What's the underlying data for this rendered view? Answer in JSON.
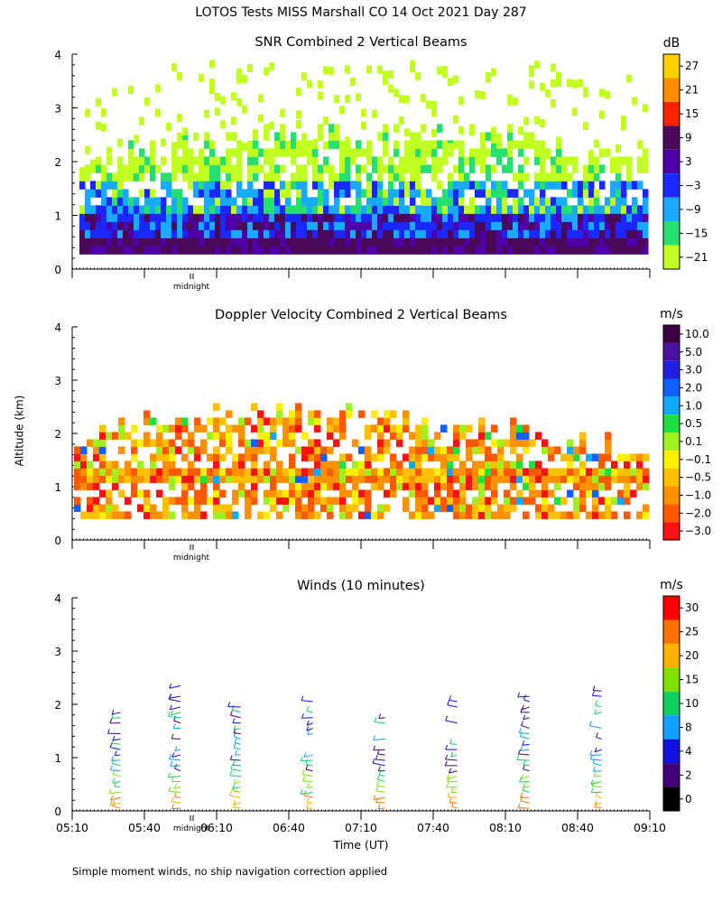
{
  "figure": {
    "title": "LOTOS Tests MISS Marshall CO  14 Oct 2021 Day 287",
    "y_axis_title": "Altitude (km)",
    "x_axis_title": "Time (UT)",
    "footnote": "Simple moment winds, no ship navigation correction applied",
    "midnight_label": "midnight"
  },
  "chart_data": [
    {
      "type": "heatmap",
      "title": "SNR Combined 2 Vertical Beams",
      "ylim": [
        0,
        4
      ],
      "yticks": [
        "0",
        "1",
        "2",
        "3",
        "4"
      ],
      "xlim": [
        "05:10",
        "09:10"
      ],
      "colorbar": {
        "unit": "dB",
        "labels": [
          "27",
          "21",
          "15",
          "9",
          "3",
          "−3",
          "−9",
          "−15",
          "−21"
        ],
        "colors": [
          "#ffd000",
          "#ff8c00",
          "#ff2000",
          "#4a0a5a",
          "#5000a8",
          "#1a28ff",
          "#18aaff",
          "#25e070",
          "#c0ff20"
        ]
      },
      "layers": [
        {
          "from_km": 0.25,
          "to_km": 0.45,
          "band": 3
        },
        {
          "from_km": 0.45,
          "to_km": 0.95,
          "band": 5
        },
        {
          "from_km": 0.95,
          "to_km": 1.6,
          "band": 6
        },
        {
          "from_km": 1.6,
          "to_km": 2.3,
          "band": 8
        }
      ]
    },
    {
      "type": "heatmap",
      "title": "Doppler Velocity Combined 2 Vertical Beams",
      "ylim": [
        0,
        4
      ],
      "yticks": [
        "0",
        "1",
        "2",
        "3",
        "4"
      ],
      "xlim": [
        "05:10",
        "09:10"
      ],
      "colorbar": {
        "unit": "m/s",
        "labels": [
          "10.0",
          "5.0",
          "3.0",
          "2.0",
          "1.0",
          "0.5",
          "0.1",
          "−0.1",
          "−0.5",
          "−1.0",
          "−2.0",
          "−3.0"
        ],
        "colors": [
          "#3a0040",
          "#4a10a0",
          "#2020e0",
          "#1060ff",
          "#10a8ff",
          "#20e040",
          "#a0f020",
          "#fff000",
          "#ffc000",
          "#ff9000",
          "#ff5800",
          "#ff1010"
        ]
      },
      "data_range_km": [
        0.4,
        2.4
      ],
      "dominant_value": "−1.0"
    },
    {
      "type": "barbs",
      "title": "Winds (10 minutes)",
      "ylim": [
        0,
        4
      ],
      "yticks": [
        "0",
        "1",
        "2",
        "3",
        "4"
      ],
      "x_ticks": [
        "05:10",
        "05:40",
        "06:10",
        "06:40",
        "07:10",
        "07:40",
        "08:10",
        "08:40",
        "09:10"
      ],
      "colorbar": {
        "unit": "m/s",
        "labels": [
          "30",
          "25",
          "20",
          "15",
          "10",
          "8",
          "4",
          "2",
          "0"
        ],
        "colors": [
          "#ff0000",
          "#ff7000",
          "#ffb000",
          "#80e000",
          "#10d060",
          "#10a0ff",
          "#1010e0",
          "#40007a",
          "#000000"
        ]
      },
      "profile_times": [
        "05:30",
        "05:55",
        "06:20",
        "06:50",
        "07:20",
        "07:50",
        "08:20",
        "08:50"
      ]
    }
  ]
}
